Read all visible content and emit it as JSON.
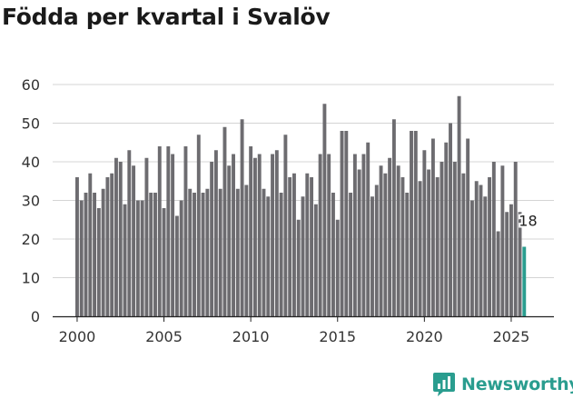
{
  "title": "Födda per kvartal i Svalöv",
  "brand": {
    "name": "Newsworthy",
    "color": "#2a9d8f"
  },
  "chart_data": {
    "type": "bar",
    "title": "Födda per kvartal i Svalöv",
    "xlabel": "",
    "ylabel": "",
    "ylim": [
      0,
      60
    ],
    "yticks": [
      0,
      10,
      20,
      30,
      40,
      50,
      60
    ],
    "xticks": [
      "2000",
      "2005",
      "2010",
      "2015",
      "2020",
      "2025"
    ],
    "grid": true,
    "bar_color": "#6d6c70",
    "highlight_color": "#2a9d8f",
    "highlight_label": "18",
    "categories": [
      "2000 Q1",
      "2000 Q2",
      "2000 Q3",
      "2000 Q4",
      "2001 Q1",
      "2001 Q2",
      "2001 Q3",
      "2001 Q4",
      "2002 Q1",
      "2002 Q2",
      "2002 Q3",
      "2002 Q4",
      "2003 Q1",
      "2003 Q2",
      "2003 Q3",
      "2003 Q4",
      "2004 Q1",
      "2004 Q2",
      "2004 Q3",
      "2004 Q4",
      "2005 Q1",
      "2005 Q2",
      "2005 Q3",
      "2005 Q4",
      "2006 Q1",
      "2006 Q2",
      "2006 Q3",
      "2006 Q4",
      "2007 Q1",
      "2007 Q2",
      "2007 Q3",
      "2007 Q4",
      "2008 Q1",
      "2008 Q2",
      "2008 Q3",
      "2008 Q4",
      "2009 Q1",
      "2009 Q2",
      "2009 Q3",
      "2009 Q4",
      "2010 Q1",
      "2010 Q2",
      "2010 Q3",
      "2010 Q4",
      "2011 Q1",
      "2011 Q2",
      "2011 Q3",
      "2011 Q4",
      "2012 Q1",
      "2012 Q2",
      "2012 Q3",
      "2012 Q4",
      "2013 Q1",
      "2013 Q2",
      "2013 Q3",
      "2013 Q4",
      "2014 Q1",
      "2014 Q2",
      "2014 Q3",
      "2014 Q4",
      "2015 Q1",
      "2015 Q2",
      "2015 Q3",
      "2015 Q4",
      "2016 Q1",
      "2016 Q2",
      "2016 Q3",
      "2016 Q4",
      "2017 Q1",
      "2017 Q2",
      "2017 Q3",
      "2017 Q4",
      "2018 Q1",
      "2018 Q2",
      "2018 Q3",
      "2018 Q4",
      "2019 Q1",
      "2019 Q2",
      "2019 Q3",
      "2019 Q4",
      "2020 Q1",
      "2020 Q2",
      "2020 Q3",
      "2020 Q4",
      "2021 Q1",
      "2021 Q2",
      "2021 Q3",
      "2021 Q4",
      "2022 Q1",
      "2022 Q2",
      "2022 Q3",
      "2022 Q4",
      "2023 Q1",
      "2023 Q2",
      "2023 Q3",
      "2023 Q4",
      "2024 Q1",
      "2024 Q2",
      "2024 Q3",
      "2024 Q4",
      "2025 Q1",
      "2025 Q2",
      "2025 Q3",
      "2025 Q4"
    ],
    "values": [
      36,
      30,
      32,
      37,
      32,
      28,
      33,
      36,
      37,
      41,
      40,
      29,
      43,
      39,
      30,
      30,
      41,
      32,
      32,
      44,
      28,
      44,
      42,
      26,
      30,
      44,
      33,
      32,
      47,
      32,
      33,
      40,
      43,
      33,
      49,
      39,
      42,
      33,
      51,
      34,
      44,
      41,
      42,
      33,
      31,
      42,
      43,
      32,
      47,
      36,
      37,
      25,
      31,
      37,
      36,
      29,
      42,
      55,
      42,
      32,
      25,
      48,
      48,
      32,
      42,
      38,
      42,
      45,
      31,
      34,
      39,
      37,
      41,
      51,
      39,
      36,
      32,
      48,
      48,
      35,
      43,
      38,
      46,
      36,
      40,
      45,
      50,
      40,
      57,
      37,
      46,
      30,
      35,
      34,
      31,
      36,
      40,
      22,
      39,
      27,
      29,
      40,
      27,
      18
    ]
  }
}
